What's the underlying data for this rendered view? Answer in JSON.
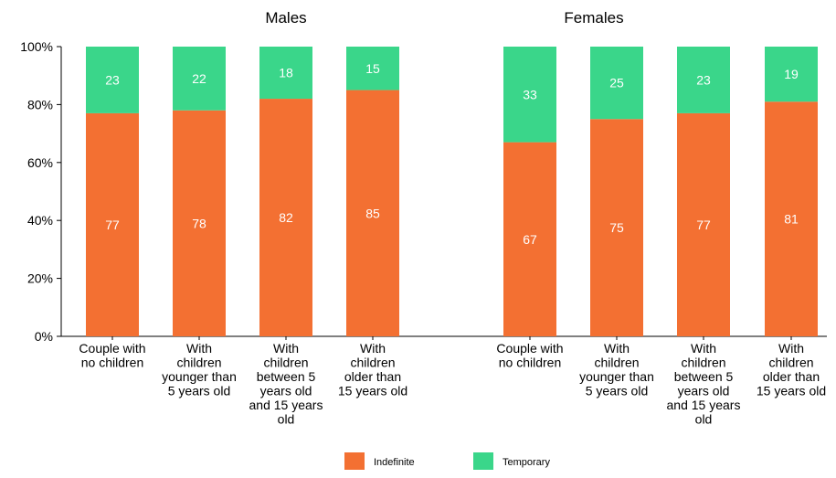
{
  "chart_data": {
    "type": "bar",
    "stacked": true,
    "percent_axis": true,
    "ylim": [
      0,
      100
    ],
    "yticks": [
      "0%",
      "20%",
      "40%",
      "60%",
      "80%",
      "100%"
    ],
    "grid": false,
    "legend": "bottom-center",
    "legend_entries": [
      {
        "name": "Indefinite",
        "color": "#f37032"
      },
      {
        "name": "Temporary",
        "color": "#3ad68a"
      }
    ],
    "panels": [
      {
        "title": "Males",
        "categories": [
          [
            "Couple with",
            "no children"
          ],
          [
            "With",
            "children",
            "younger than",
            "5 years old"
          ],
          [
            "With",
            "children",
            "between 5",
            "years old",
            "and 15 years",
            "old"
          ],
          [
            "With",
            "children",
            "older than",
            "15 years old"
          ]
        ],
        "series": [
          {
            "name": "Indefinite",
            "values": [
              77,
              78,
              82,
              85
            ]
          },
          {
            "name": "Temporary",
            "values": [
              23,
              22,
              18,
              15
            ]
          }
        ]
      },
      {
        "title": "Females",
        "categories": [
          [
            "Couple with",
            "no children"
          ],
          [
            "With",
            "children",
            "younger than",
            "5 years old"
          ],
          [
            "With",
            "children",
            "between 5",
            "years old",
            "and 15 years",
            "old"
          ],
          [
            "With",
            "children",
            "older than",
            "15 years old"
          ]
        ],
        "series": [
          {
            "name": "Indefinite",
            "values": [
              67,
              75,
              77,
              81
            ]
          },
          {
            "name": "Temporary",
            "values": [
              33,
              25,
              23,
              19
            ]
          }
        ]
      }
    ]
  }
}
